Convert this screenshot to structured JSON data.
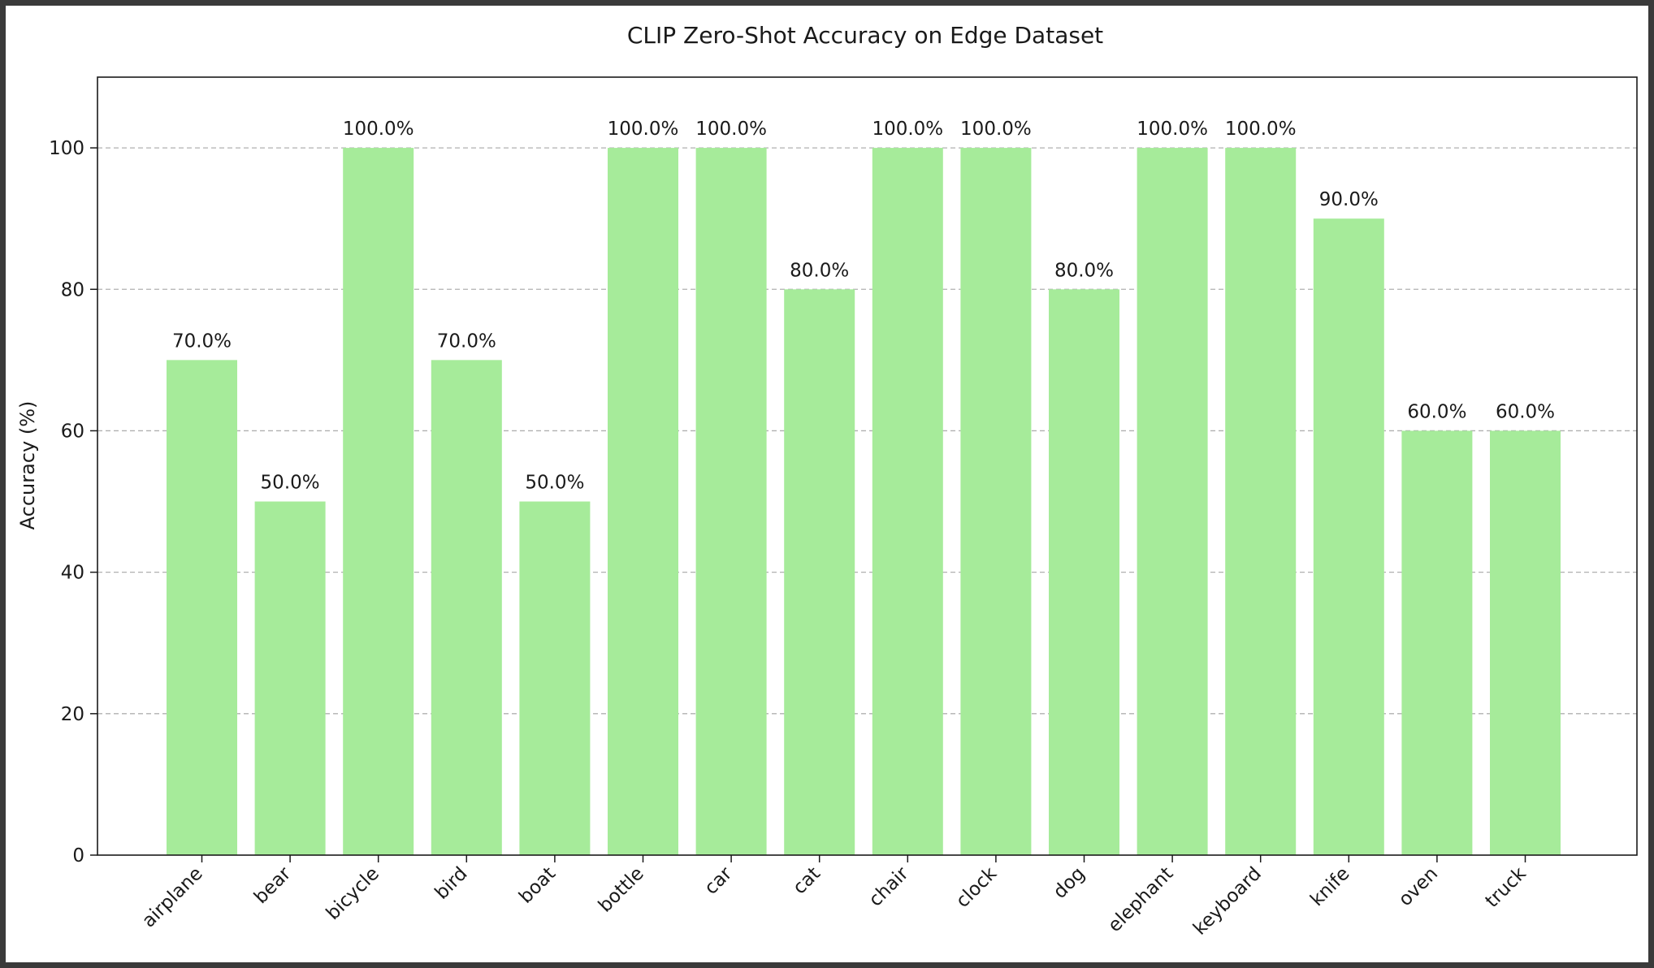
{
  "chart_data": {
    "type": "bar",
    "title": "CLIP Zero-Shot Accuracy on Edge Dataset",
    "xlabel": "",
    "ylabel": "Accuracy (%)",
    "ylim": [
      0,
      110
    ],
    "yticks": [
      0,
      20,
      40,
      60,
      80,
      100
    ],
    "grid": "y",
    "bar_color": "#a6eb9a",
    "categories": [
      "airplane",
      "bear",
      "bicycle",
      "bird",
      "boat",
      "bottle",
      "car",
      "cat",
      "chair",
      "clock",
      "dog",
      "elephant",
      "keyboard",
      "knife",
      "oven",
      "truck"
    ],
    "values": [
      70,
      50,
      100,
      70,
      50,
      100,
      100,
      80,
      100,
      100,
      80,
      100,
      100,
      90,
      60,
      60
    ],
    "data_labels": [
      "70.0%",
      "50.0%",
      "100.0%",
      "70.0%",
      "50.0%",
      "100.0%",
      "100.0%",
      "80.0%",
      "100.0%",
      "100.0%",
      "80.0%",
      "100.0%",
      "100.0%",
      "90.0%",
      "60.0%",
      "60.0%"
    ]
  }
}
